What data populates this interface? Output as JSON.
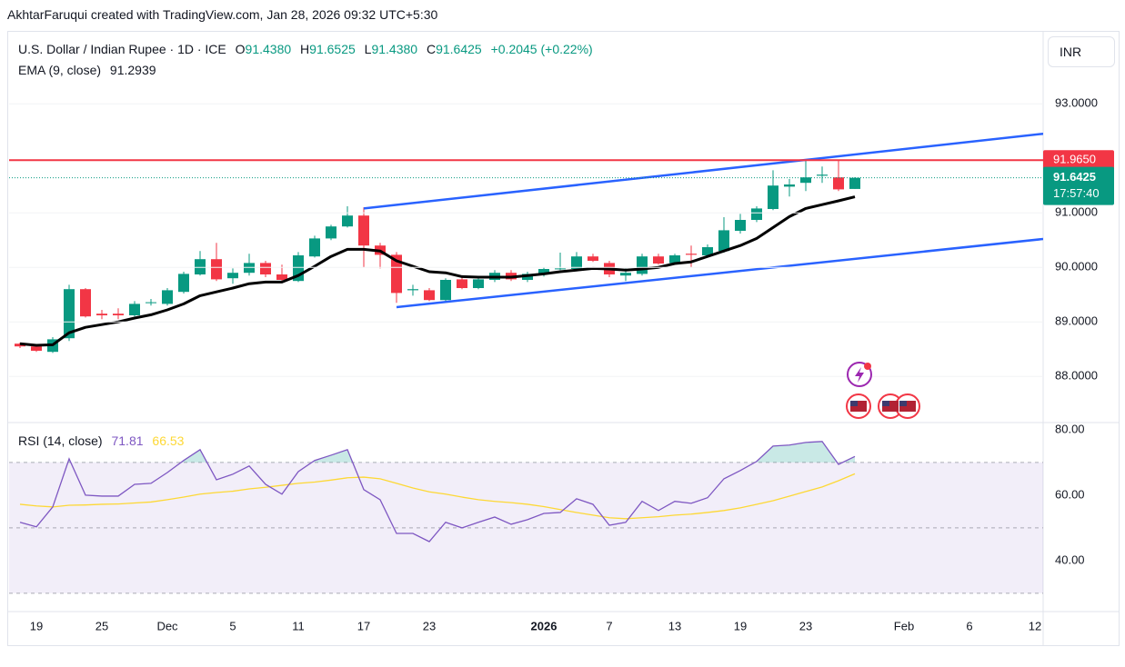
{
  "header": {
    "attribution": "AkhtarFaruqui created with TradingView.com, Jan 28, 2026 09:32 UTC+5:30",
    "symbol": "U.S. Dollar / Indian Rupee · 1D · ICE",
    "ohlc": [
      {
        "key": "O",
        "value": "91.4380"
      },
      {
        "key": "H",
        "value": "91.6525"
      },
      {
        "key": "L",
        "value": "91.4380"
      },
      {
        "key": "C",
        "value": "91.6425"
      }
    ],
    "change": "+0.2045 (+0.22%)",
    "currency": "INR"
  },
  "chart_data": [
    {
      "type": "candlestick",
      "categories": [
        null,
        "19",
        null,
        null,
        null,
        "25",
        null,
        null,
        null,
        "Dec",
        null,
        null,
        null,
        "5",
        null,
        null,
        null,
        "11",
        null,
        null,
        null,
        "17",
        null,
        null,
        null,
        "23",
        null,
        null,
        null,
        null,
        null,
        null,
        "2026",
        null,
        null,
        null,
        "7",
        null,
        null,
        null,
        "13",
        null,
        null,
        null,
        "19",
        null,
        null,
        null,
        "23",
        null,
        null,
        null,
        null,
        null,
        "Feb",
        null,
        null,
        null,
        "6",
        null,
        null,
        null,
        "12"
      ],
      "open": [
        88.6,
        88.55,
        88.45,
        88.7,
        89.6,
        89.15,
        89.15,
        89.12,
        89.35,
        89.33,
        89.55,
        89.87,
        90.15,
        89.8,
        89.9,
        90.08,
        89.87,
        89.75,
        90.2,
        90.53,
        90.75,
        90.95,
        90.4,
        90.23,
        89.58,
        89.58,
        89.4,
        89.78,
        89.62,
        89.77,
        89.9,
        89.77,
        89.87,
        89.97,
        89.97,
        90.2,
        90.08,
        89.85,
        89.88,
        90.2,
        90.08,
        90.25,
        90.22,
        90.3,
        90.67,
        90.87,
        91.07,
        91.48,
        91.55,
        91.68,
        91.65,
        91.438,
        null,
        null,
        null,
        null,
        null,
        null,
        null,
        null,
        null,
        null,
        null
      ],
      "high": [
        88.62,
        88.58,
        88.72,
        89.68,
        89.62,
        89.22,
        89.25,
        89.38,
        89.42,
        89.62,
        89.92,
        90.3,
        90.45,
        89.98,
        90.25,
        90.12,
        90.05,
        90.28,
        90.58,
        90.78,
        91.12,
        91.1,
        90.45,
        90.28,
        89.68,
        89.62,
        89.8,
        89.85,
        89.83,
        89.95,
        89.95,
        89.92,
        90.0,
        90.27,
        90.28,
        90.25,
        90.12,
        89.98,
        90.25,
        90.25,
        90.25,
        90.4,
        90.42,
        90.92,
        90.98,
        91.12,
        91.78,
        91.62,
        91.97,
        91.85,
        91.96,
        91.6525,
        null,
        null,
        null,
        null,
        null,
        null,
        null,
        null,
        null,
        null,
        null
      ],
      "low": [
        88.52,
        88.45,
        88.43,
        88.65,
        89.08,
        89.05,
        89.05,
        89.1,
        89.3,
        89.3,
        89.52,
        89.85,
        89.75,
        89.7,
        89.85,
        89.82,
        89.72,
        89.73,
        90.18,
        90.5,
        90.73,
        90.0,
        89.98,
        89.35,
        89.48,
        89.38,
        89.38,
        89.6,
        89.6,
        89.73,
        89.75,
        89.73,
        89.83,
        89.95,
        89.93,
        90.1,
        89.82,
        89.75,
        89.85,
        90.05,
        90.05,
        90.0,
        90.18,
        90.27,
        90.62,
        90.83,
        91.05,
        91.3,
        91.4,
        91.55,
        91.4,
        91.438,
        null,
        null,
        null,
        null,
        null,
        null,
        null,
        null,
        null,
        null,
        null
      ],
      "close": [
        88.55,
        88.47,
        88.68,
        89.6,
        89.1,
        89.12,
        89.12,
        89.33,
        89.36,
        89.58,
        89.88,
        90.15,
        89.78,
        89.9,
        90.08,
        89.87,
        89.77,
        90.22,
        90.53,
        90.75,
        90.95,
        90.4,
        90.23,
        89.53,
        89.6,
        89.4,
        89.77,
        89.62,
        89.78,
        89.9,
        89.78,
        89.88,
        89.97,
        89.98,
        90.2,
        90.12,
        89.87,
        89.9,
        90.2,
        90.07,
        90.22,
        90.23,
        90.37,
        90.68,
        90.87,
        91.08,
        91.5,
        91.52,
        91.65,
        91.7,
        91.43,
        91.6425,
        null,
        null,
        null,
        null,
        null,
        null,
        null,
        null,
        null,
        null,
        null
      ],
      "up_color": "#089981",
      "down_color": "#f23645",
      "series": [
        {
          "name": "EMA (9, close)",
          "color": "#000000",
          "values": [
            88.6,
            88.57,
            88.58,
            88.8,
            88.9,
            88.95,
            89.0,
            89.07,
            89.13,
            89.22,
            89.33,
            89.48,
            89.55,
            89.62,
            89.7,
            89.73,
            89.73,
            89.85,
            90.02,
            90.2,
            90.33,
            90.33,
            90.3,
            90.12,
            90.02,
            89.92,
            89.9,
            89.83,
            89.82,
            89.82,
            89.82,
            89.85,
            89.88,
            89.92,
            89.95,
            89.98,
            89.97,
            89.95,
            89.97,
            90.0,
            90.07,
            90.1,
            90.2,
            90.3,
            90.4,
            90.53,
            90.73,
            90.93,
            91.08,
            91.15,
            91.22,
            91.2939,
            null,
            null,
            null,
            null,
            null,
            null,
            null,
            null,
            null,
            null,
            null
          ]
        }
      ],
      "ylim": [
        87.17,
        94.32
      ],
      "yticks": [
        {
          "value": 88,
          "label": "88.0000"
        },
        {
          "value": 89,
          "label": "89.0000"
        },
        {
          "value": 90,
          "label": "90.0000"
        },
        {
          "value": 91,
          "label": "91.0000"
        },
        {
          "value": 93,
          "label": "93.0000"
        }
      ],
      "horizontal_lines": [
        {
          "value": 91.965,
          "label": "91.9650",
          "color": "#f23645"
        }
      ],
      "trend_lines": [
        {
          "color": "#2962ff",
          "x": [
            21,
            62.5
          ],
          "y": [
            91.08,
            92.45
          ]
        },
        {
          "color": "#2962ff",
          "x": [
            23,
            62.5
          ],
          "y": [
            89.27,
            90.52
          ]
        }
      ],
      "last_price": {
        "value": 91.6425,
        "countdown": "17:57:40"
      }
    },
    {
      "type": "line",
      "title": "RSI (14, close)",
      "series": [
        {
          "color": "#7e57c2",
          "values": [
            51.7,
            50.3,
            56.4,
            71.1,
            60.0,
            59.7,
            59.7,
            63.3,
            63.6,
            66.9,
            70.6,
            73.9,
            64.7,
            66.4,
            68.9,
            63.3,
            60.3,
            67.2,
            70.6,
            72.2,
            73.9,
            61.7,
            58.6,
            48.3,
            48.3,
            45.8,
            51.7,
            50.0,
            51.7,
            53.3,
            51.1,
            52.5,
            54.4,
            54.7,
            58.9,
            57.2,
            50.8,
            51.7,
            58.1,
            55.3,
            58.1,
            57.5,
            59.2,
            65.0,
            67.5,
            70.3,
            75.0,
            75.3,
            76.1,
            76.4,
            69.4,
            71.81,
            null,
            null,
            null,
            null,
            null,
            null,
            null,
            null,
            null,
            null,
            null
          ]
        },
        {
          "color": "#fdd835",
          "values": [
            57.2,
            56.7,
            56.4,
            56.9,
            57.0,
            57.2,
            57.3,
            57.6,
            57.9,
            58.6,
            59.4,
            60.3,
            60.8,
            61.2,
            61.9,
            62.4,
            63.0,
            63.6,
            64.0,
            64.6,
            65.3,
            65.5,
            65.0,
            63.6,
            62.2,
            61.0,
            60.3,
            59.4,
            58.6,
            58.1,
            57.7,
            57.2,
            56.5,
            55.6,
            54.7,
            53.9,
            53.1,
            52.8,
            53.1,
            53.4,
            53.9,
            54.2,
            54.7,
            55.3,
            56.1,
            57.2,
            58.3,
            59.7,
            61.1,
            62.5,
            64.4,
            66.53,
            null,
            null,
            null,
            null,
            null,
            null,
            null,
            null,
            null,
            null,
            null
          ]
        }
      ],
      "ylim": [
        24.7,
        81.9
      ],
      "yticks": [
        {
          "value": 40,
          "label": "40.00"
        },
        {
          "value": 60,
          "label": "60.00"
        },
        {
          "value": 80,
          "label": "80.00"
        }
      ],
      "band": [
        30,
        70
      ],
      "midline": 50,
      "band_color": "#7e57c2",
      "overbought_color": "#26a69a"
    }
  ]
}
